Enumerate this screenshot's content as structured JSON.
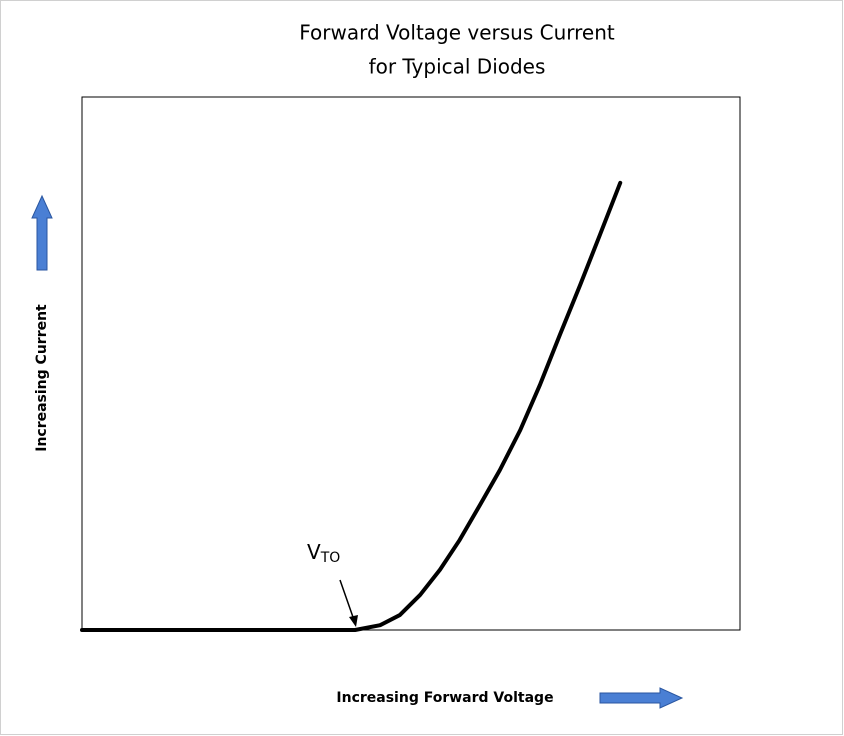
{
  "chart_data": {
    "type": "line",
    "title": [
      "Forward Voltage versus Current",
      "for Typical Diodes"
    ],
    "x_label": "Increasing Forward Voltage",
    "y_label": "Increasing Current",
    "annotation": {
      "text": "V",
      "subscript": "TO"
    },
    "xlim": [
      0,
      100
    ],
    "ylim": [
      0,
      100
    ],
    "series": [
      {
        "color": "#000000",
        "x": [
          0,
          41.5,
          45.3,
          48.3,
          51.4,
          54.4,
          57.4,
          60.5,
          63.5,
          66.6,
          69.6,
          72.6,
          75.7,
          78.7,
          81.8
        ],
        "values": [
          0,
          0,
          0.9,
          2.8,
          6.6,
          11.3,
          16.9,
          23.5,
          30,
          37.5,
          46,
          55.3,
          64.7,
          74.1,
          83.9
        ]
      }
    ]
  }
}
